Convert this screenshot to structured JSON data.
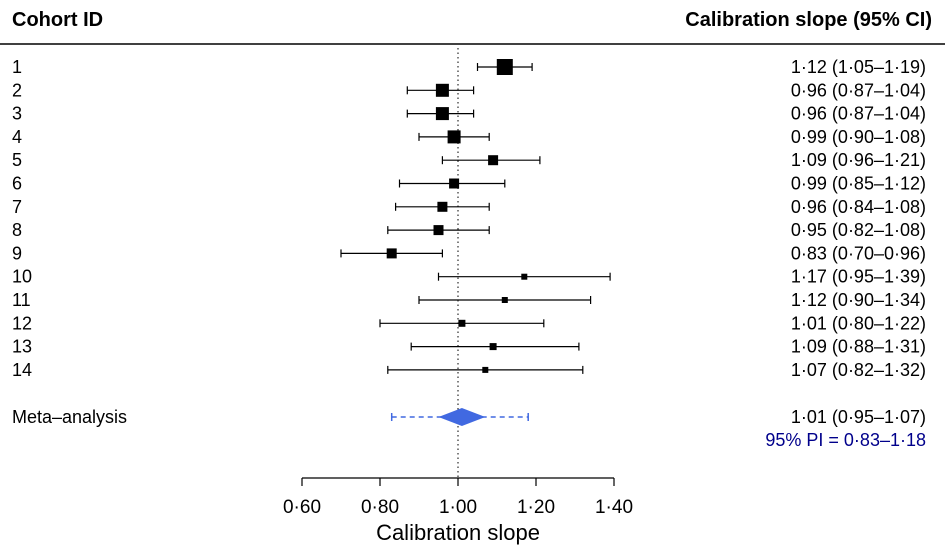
{
  "chart_data": {
    "type": "forest",
    "header_left": "Cohort ID",
    "header_right": "Calibration slope (95% CI)",
    "xlabel": "Calibration slope",
    "xlim": [
      0.6,
      1.4
    ],
    "ticks": [
      0.6,
      0.8,
      1.0,
      1.2,
      1.4
    ],
    "tick_labels": [
      "0·60",
      "0·80",
      "1·00",
      "1·20",
      "1·40"
    ],
    "reference_line": 1.0,
    "colors": {
      "marker": "#000000",
      "meta": "#4169e1",
      "pi_text": "#00008b"
    },
    "studies": [
      {
        "id": "1",
        "estimate": 1.12,
        "lower": 1.05,
        "upper": 1.19,
        "weight": 16,
        "text": "1·12 (1·05–1·19)"
      },
      {
        "id": "2",
        "estimate": 0.96,
        "lower": 0.87,
        "upper": 1.04,
        "weight": 13,
        "text": "0·96 (0·87–1·04)"
      },
      {
        "id": "3",
        "estimate": 0.96,
        "lower": 0.87,
        "upper": 1.04,
        "weight": 13,
        "text": "0·96 (0·87–1·04)"
      },
      {
        "id": "4",
        "estimate": 0.99,
        "lower": 0.9,
        "upper": 1.08,
        "weight": 13,
        "text": "0·99 (0·90–1·08)"
      },
      {
        "id": "5",
        "estimate": 1.09,
        "lower": 0.96,
        "upper": 1.21,
        "weight": 10,
        "text": "1·09 (0·96–1·21)"
      },
      {
        "id": "6",
        "estimate": 0.99,
        "lower": 0.85,
        "upper": 1.12,
        "weight": 10,
        "text": "0·99 (0·85–1·12)"
      },
      {
        "id": "7",
        "estimate": 0.96,
        "lower": 0.84,
        "upper": 1.08,
        "weight": 10,
        "text": "0·96 (0·84–1·08)"
      },
      {
        "id": "8",
        "estimate": 0.95,
        "lower": 0.82,
        "upper": 1.08,
        "weight": 10,
        "text": "0·95 (0·82–1·08)"
      },
      {
        "id": "9",
        "estimate": 0.83,
        "lower": 0.7,
        "upper": 0.96,
        "weight": 10,
        "text": "0·83 (0·70–0·96)"
      },
      {
        "id": "10",
        "estimate": 1.17,
        "lower": 0.95,
        "upper": 1.39,
        "weight": 6,
        "text": "1·17 (0·95–1·39)"
      },
      {
        "id": "11",
        "estimate": 1.12,
        "lower": 0.9,
        "upper": 1.34,
        "weight": 6,
        "text": "1·12 (0·90–1·34)"
      },
      {
        "id": "12",
        "estimate": 1.01,
        "lower": 0.8,
        "upper": 1.22,
        "weight": 7,
        "text": "1·01 (0·80–1·22)"
      },
      {
        "id": "13",
        "estimate": 1.09,
        "lower": 0.88,
        "upper": 1.31,
        "weight": 7,
        "text": "1·09 (0·88–1·31)"
      },
      {
        "id": "14",
        "estimate": 1.07,
        "lower": 0.82,
        "upper": 1.32,
        "weight": 6,
        "text": "1·07 (0·82–1·32)"
      }
    ],
    "meta": {
      "label": "Meta–analysis",
      "estimate": 1.01,
      "lower": 0.95,
      "upper": 1.07,
      "pi_lower": 0.83,
      "pi_upper": 1.18,
      "text": "1·01 (0·95–1·07)",
      "pi_text": "95% PI = 0·83–1·18"
    }
  }
}
